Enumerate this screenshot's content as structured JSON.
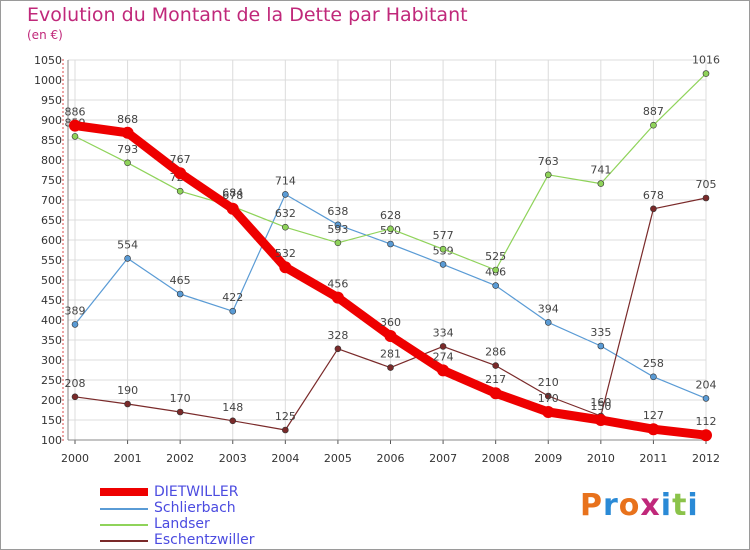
{
  "header": {
    "title": "Evolution du Montant de la Dette par Habitant",
    "subtitle": "(en €)"
  },
  "logo": {
    "text": "Proxiti",
    "colors": [
      "#e8721c",
      "#2a8ad6",
      "#e8721c",
      "#c0287a",
      "#2a8ad6",
      "#8bc34a",
      "#2a8ad6"
    ]
  },
  "chart_data": {
    "type": "line",
    "title": "Evolution du Montant de la Dette par Habitant",
    "subtitle": "(en €)",
    "x": [
      "2000",
      "2001",
      "2002",
      "2003",
      "2004",
      "2005",
      "2006",
      "2007",
      "2008",
      "2009",
      "2010",
      "2011",
      "2012"
    ],
    "ylim": [
      100,
      1050
    ],
    "yticks": [
      100,
      150,
      200,
      250,
      300,
      350,
      400,
      450,
      500,
      550,
      600,
      650,
      700,
      750,
      800,
      850,
      900,
      950,
      1000,
      1050
    ],
    "grid": true,
    "legend_position": "bottom-left",
    "series": [
      {
        "name": "DIETWILLER",
        "color": "#ee0000",
        "bold": true,
        "values": [
          886,
          868,
          767,
          678,
          532,
          456,
          360,
          274,
          217,
          170,
          150,
          127,
          112
        ],
        "labels": [
          "886",
          "868",
          "767",
          "678",
          "532",
          "456",
          "360",
          "274",
          "217",
          "170",
          "150",
          "127",
          "112"
        ]
      },
      {
        "name": "Schlierbach",
        "color": "#5a9bd5",
        "values": [
          389,
          554,
          465,
          422,
          714,
          638,
          590,
          539,
          486,
          394,
          335,
          258,
          204
        ],
        "labels": [
          "389",
          "554",
          "465",
          "422",
          "714",
          "638",
          "590",
          "539",
          "486",
          "394",
          "335",
          "258",
          "204"
        ]
      },
      {
        "name": "Landser",
        "color": "#8fd35a",
        "values": [
          859,
          793,
          722,
          684,
          632,
          593,
          628,
          577,
          525,
          763,
          741,
          887,
          1016
        ],
        "labels": [
          "859",
          "793",
          "722",
          "684",
          "632",
          "593",
          "628",
          "577",
          "525",
          "763",
          "741",
          "887",
          "1016"
        ]
      },
      {
        "name": "Eschentzwiller",
        "color": "#7a2a2a",
        "values": [
          208,
          190,
          170,
          148,
          125,
          328,
          281,
          334,
          286,
          210,
          160,
          678,
          705
        ],
        "labels": [
          "208",
          "190",
          "170",
          "148",
          "125",
          "328",
          "281",
          "334",
          "286",
          "210",
          "160",
          "678",
          "705"
        ]
      }
    ]
  }
}
